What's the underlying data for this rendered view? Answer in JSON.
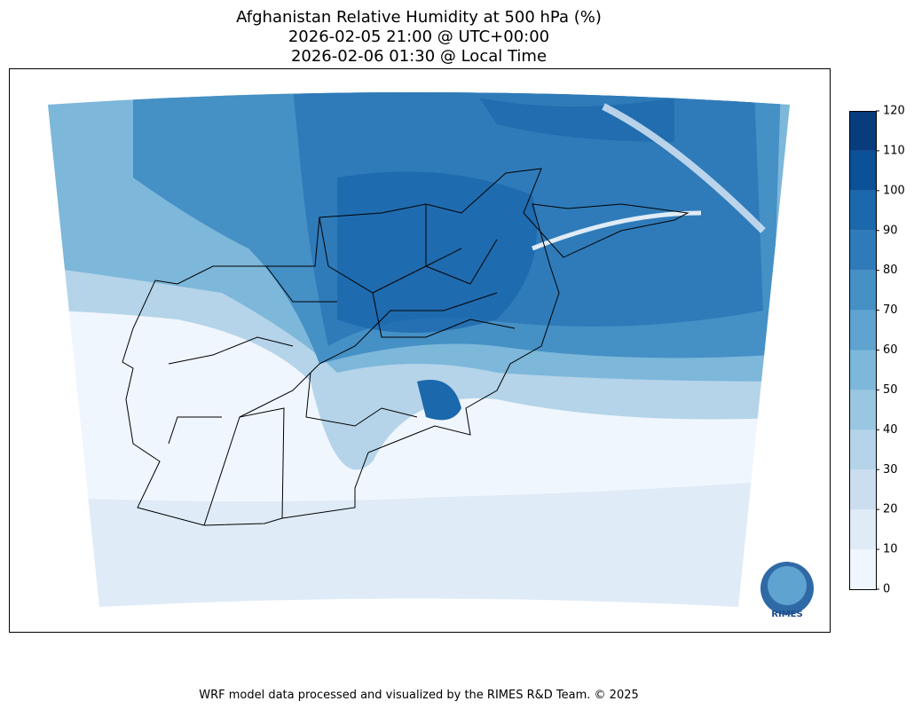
{
  "title": [
    "Afghanistan Relative Humidity at 500 hPa (%)",
    "2026-02-05 21:00 @ UTC+00:00",
    "2026-02-06 01:30 @ Local Time"
  ],
  "colorbar": {
    "ticks": [
      0,
      10,
      20,
      30,
      40,
      50,
      60,
      70,
      80,
      90,
      100,
      110,
      120
    ],
    "colors": [
      "#f0f6fd",
      "#dfebf7",
      "#cadef0",
      "#b5d4e9",
      "#99c6e1",
      "#7db7da",
      "#5fa3d0",
      "#4590c5",
      "#2f7bb9",
      "#1b68ac",
      "#0b5197",
      "#083c7d"
    ]
  },
  "logo": "RIMES",
  "footer": "WRF model data processed and visualized by the RIMES R&D Team. © 2025"
}
